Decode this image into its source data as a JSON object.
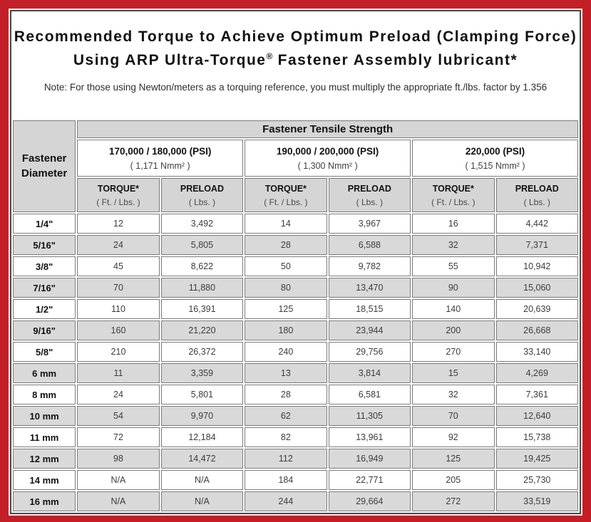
{
  "page": {
    "title_line1": "Recommended Torque to Achieve Optimum Preload (Clamping Force)",
    "title_line2_pre": "Using ARP Ultra-Torque",
    "title_reg_mark": "®",
    "title_line2_post": " Fastener Assembly lubricant*",
    "note": "Note: For those using Newton/meters as a torquing reference, you must multiply the appropriate ft./lbs. factor by 1.356"
  },
  "colors": {
    "border_red": "#c31f27",
    "header_gray": "#d5d5d5",
    "row_shade_gray": "#d9d9d9",
    "cell_border": "#7b7b7b"
  },
  "table": {
    "tensile_header": "Fastener Tensile Strength",
    "diameter_header_line1": "Fastener",
    "diameter_header_line2": "Diameter",
    "psi_groups": [
      {
        "psi": "170,000 / 180,000 (PSI)",
        "nmm": "( 1,171 Nmm² )"
      },
      {
        "psi": "190,000 / 200,000 (PSI)",
        "nmm": "( 1,300 Nmm² )"
      },
      {
        "psi": "220,000 (PSI)",
        "nmm": "( 1,515 Nmm² )"
      }
    ],
    "col_headers": [
      {
        "label": "TORQUE*",
        "sub": "( Ft. / Lbs. )"
      },
      {
        "label": "PRELOAD",
        "sub": "( Lbs. )"
      },
      {
        "label": "TORQUE*",
        "sub": "( Ft. / Lbs. )"
      },
      {
        "label": "PRELOAD",
        "sub": "( Lbs. )"
      },
      {
        "label": "TORQUE*",
        "sub": "( Ft. / Lbs. )"
      },
      {
        "label": "PRELOAD",
        "sub": "( Lbs. )"
      }
    ],
    "rows": [
      {
        "diameter": "1/4\"",
        "values": [
          "12",
          "3,492",
          "14",
          "3,967",
          "16",
          "4,442"
        ]
      },
      {
        "diameter": "5/16\"",
        "values": [
          "24",
          "5,805",
          "28",
          "6,588",
          "32",
          "7,371"
        ]
      },
      {
        "diameter": "3/8\"",
        "values": [
          "45",
          "8,622",
          "50",
          "9,782",
          "55",
          "10,942"
        ]
      },
      {
        "diameter": "7/16\"",
        "values": [
          "70",
          "11,880",
          "80",
          "13,470",
          "90",
          "15,060"
        ]
      },
      {
        "diameter": "1/2\"",
        "values": [
          "110",
          "16,391",
          "125",
          "18,515",
          "140",
          "20,639"
        ]
      },
      {
        "diameter": "9/16\"",
        "values": [
          "160",
          "21,220",
          "180",
          "23,944",
          "200",
          "26,668"
        ]
      },
      {
        "diameter": "5/8\"",
        "values": [
          "210",
          "26,372",
          "240",
          "29,756",
          "270",
          "33,140"
        ]
      },
      {
        "diameter": "6 mm",
        "values": [
          "11",
          "3,359",
          "13",
          "3,814",
          "15",
          "4,269"
        ]
      },
      {
        "diameter": "8 mm",
        "values": [
          "24",
          "5,801",
          "28",
          "6,581",
          "32",
          "7,361"
        ]
      },
      {
        "diameter": "10 mm",
        "values": [
          "54",
          "9,970",
          "62",
          "11,305",
          "70",
          "12,640"
        ]
      },
      {
        "diameter": "11 mm",
        "values": [
          "72",
          "12,184",
          "82",
          "13,961",
          "92",
          "15,738"
        ]
      },
      {
        "diameter": "12 mm",
        "values": [
          "98",
          "14,472",
          "112",
          "16,949",
          "125",
          "19,425"
        ]
      },
      {
        "diameter": "14 mm",
        "values": [
          "N/A",
          "N/A",
          "184",
          "22,771",
          "205",
          "25,730"
        ]
      },
      {
        "diameter": "16 mm",
        "values": [
          "N/A",
          "N/A",
          "244",
          "29,664",
          "272",
          "33,519"
        ]
      }
    ]
  }
}
